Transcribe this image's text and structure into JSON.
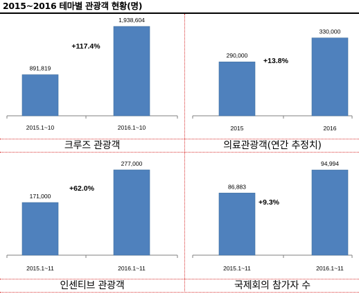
{
  "page_title": "2015~2016 테마별 관광객 현황(명)",
  "colors": {
    "bar": "#4f81bd",
    "bar_edge": "#41709f",
    "axis": "#7f7f7f",
    "divider": "#d83030"
  },
  "chart_data": [
    {
      "type": "bar",
      "caption": "크루즈 관광객",
      "categories": [
        "2015.1~10",
        "2016.1~10"
      ],
      "values": [
        891819,
        1938604
      ],
      "value_labels": [
        "891,819",
        "1,938,604"
      ],
      "annotation": "+117.4%",
      "ylim": [
        0,
        2000000
      ]
    },
    {
      "type": "bar",
      "caption": "의료관광객(연간 추정치)",
      "categories": [
        "2015",
        "2016"
      ],
      "values": [
        290000,
        330000
      ],
      "value_labels": [
        "290,000",
        "330,000"
      ],
      "annotation": "+13.8%",
      "ylim": [
        200000,
        340000
      ]
    },
    {
      "type": "bar",
      "caption": "인센티브 관광객",
      "categories": [
        "2015.1~11",
        "2016.1~11"
      ],
      "values": [
        171000,
        277000
      ],
      "value_labels": [
        "171,000",
        "277,000"
      ],
      "annotation": "+62.0%",
      "ylim": [
        0,
        286000
      ]
    },
    {
      "type": "bar",
      "caption": "국제회의 참가자 수",
      "categories": [
        "2015.1~11",
        "2016.1~11"
      ],
      "values": [
        86883,
        94994
      ],
      "value_labels": [
        "86,883",
        "94,994"
      ],
      "annotation": "+9.3%",
      "ylim": [
        65000,
        96000
      ]
    }
  ]
}
